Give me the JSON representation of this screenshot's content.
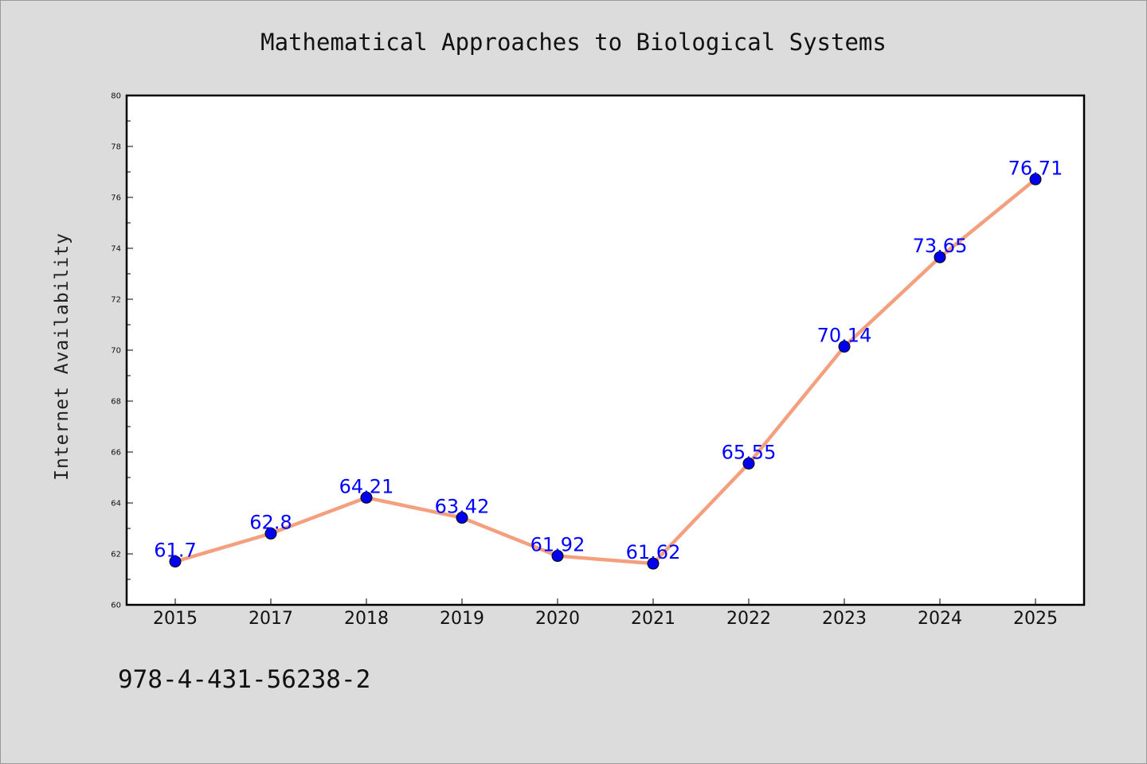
{
  "chart_data": {
    "type": "line",
    "title": "Mathematical Approaches to Biological Systems",
    "xlabel": "",
    "ylabel": "Internet Availability",
    "categories": [
      "2015",
      "2017",
      "2018",
      "2019",
      "2020",
      "2021",
      "2022",
      "2023",
      "2024",
      "2025"
    ],
    "series": [
      {
        "values": [
          61.7,
          62.8,
          64.21,
          63.42,
          61.92,
          61.62,
          65.55,
          70.14,
          73.65,
          76.71
        ],
        "data_labels": [
          "61.7",
          "62.8",
          "64.21",
          "63.42",
          "61.92",
          "61.62",
          "65.55",
          "70.14",
          "73.65",
          "76.71"
        ],
        "line_color": "#f4a07e",
        "marker_color": "#0000ee"
      }
    ],
    "ylim": [
      60,
      80
    ],
    "yticks": [
      "60",
      "62",
      "64",
      "66",
      "68",
      "70",
      "72",
      "74",
      "76",
      "78",
      "80"
    ],
    "grid": false,
    "legend": "none",
    "label_color": "#0000ff",
    "background_color": "#dcdcdc",
    "plot_background": "#ffffff"
  },
  "footer_text": "978-4-431-56238-2"
}
